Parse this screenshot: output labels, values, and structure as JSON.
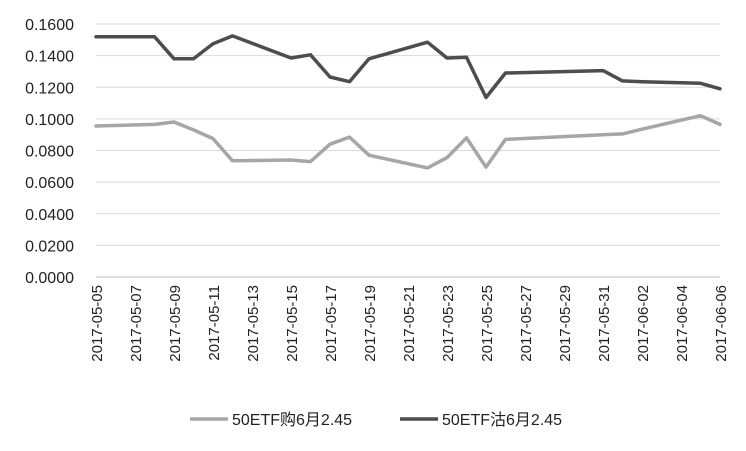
{
  "chart_data": {
    "type": "line",
    "x": [
      "2017-05-05",
      "2017-05-08",
      "2017-05-09",
      "2017-05-10",
      "2017-05-11",
      "2017-05-12",
      "2017-05-15",
      "2017-05-16",
      "2017-05-17",
      "2017-05-18",
      "2017-05-19",
      "2017-05-22",
      "2017-05-23",
      "2017-05-24",
      "2017-05-25",
      "2017-05-26",
      "2017-05-31",
      "2017-06-01",
      "2017-06-02",
      "2017-06-05",
      "2017-06-06"
    ],
    "xtick_labels": [
      "2017-05-05",
      "2017-05-07",
      "2017-05-09",
      "2017-05-11",
      "2017-05-13",
      "2017-05-15",
      "2017-05-17",
      "2017-05-19",
      "2017-05-21",
      "2017-05-23",
      "2017-05-25",
      "2017-05-27",
      "2017-05-29",
      "2017-05-31",
      "2017-06-02",
      "2017-06-04",
      "2017-06-06"
    ],
    "ytick_labels": [
      "0.0000",
      "0.0200",
      "0.0400",
      "0.0600",
      "0.0800",
      "0.1000",
      "0.1200",
      "0.1400",
      "0.1600"
    ],
    "ylim": [
      0,
      0.16
    ],
    "grid": true,
    "legend_position": "bottom",
    "series": [
      {
        "name": "50ETF购6月2.45",
        "color": "#a6a6a6",
        "values": [
          0.0955,
          0.0965,
          0.098,
          0.093,
          0.0875,
          0.0735,
          0.074,
          0.073,
          0.084,
          0.0885,
          0.077,
          0.069,
          0.0755,
          0.088,
          0.0695,
          0.087,
          0.09,
          0.0905,
          0.0935,
          0.102,
          0.0965
        ]
      },
      {
        "name": "50ETF沽6月2.45",
        "color": "#4d4d4d",
        "values": [
          0.152,
          0.152,
          0.138,
          0.138,
          0.1475,
          0.1525,
          0.1385,
          0.1405,
          0.1265,
          0.1235,
          0.138,
          0.1485,
          0.1385,
          0.139,
          0.1135,
          0.129,
          0.1305,
          0.124,
          0.1235,
          0.1225,
          0.119
        ]
      }
    ]
  }
}
